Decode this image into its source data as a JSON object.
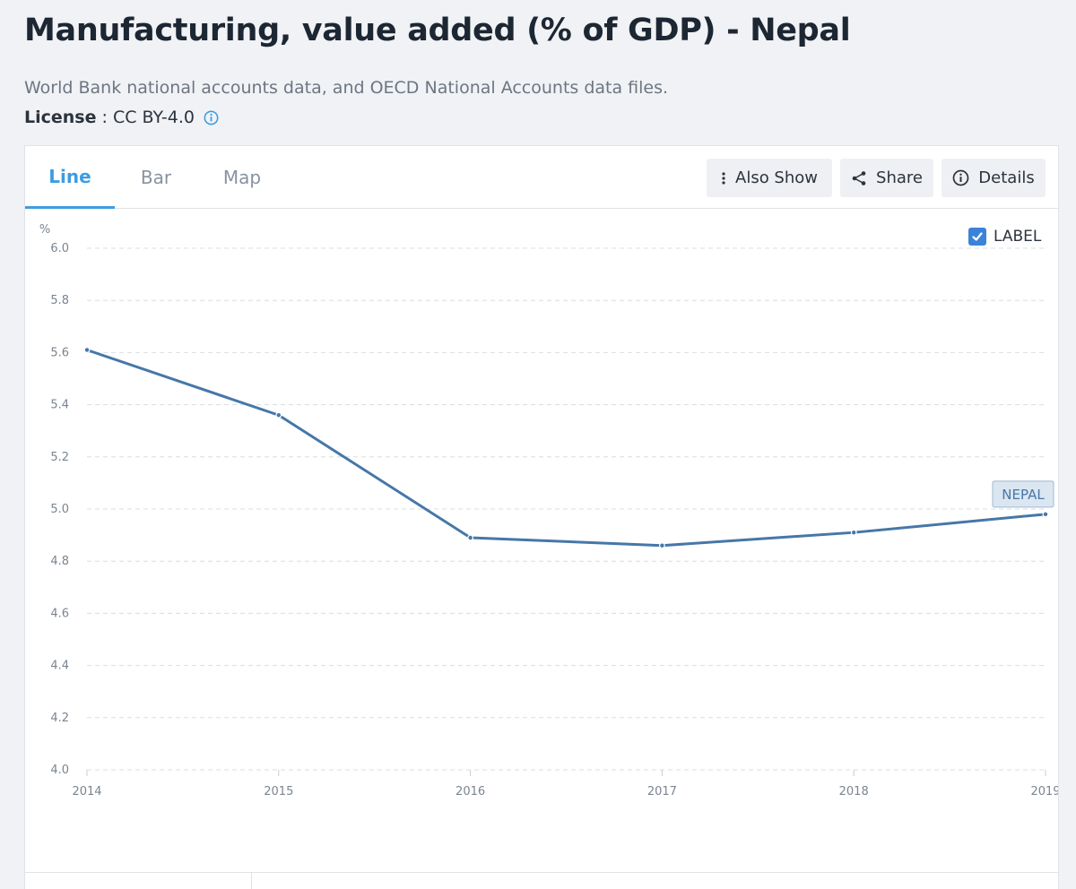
{
  "page": {
    "title": "Manufacturing, value added (% of GDP) - Nepal",
    "source": "World Bank national accounts data, and OECD National Accounts data files.",
    "license_label": "License",
    "license_sep": " : ",
    "license_value": "CC BY-4.0"
  },
  "tabs": [
    {
      "label": "Line",
      "active": true
    },
    {
      "label": "Bar",
      "active": false
    },
    {
      "label": "Map",
      "active": false
    }
  ],
  "actions": {
    "also_show": "Also Show",
    "share": "Share",
    "details": "Details"
  },
  "label_toggle": {
    "text": "LABEL",
    "checked": true
  },
  "colors": {
    "accent": "#3f9ce0",
    "series": "#4677a8",
    "series_label_bg": "#dbe6f1",
    "grid": "#d9dde2",
    "axis_text": "#7b8490"
  },
  "chart_data": {
    "type": "line",
    "title": "Manufacturing, value added (% of GDP) - Nepal",
    "ylabel": "%",
    "xlabel": "",
    "x": [
      "2014",
      "2015",
      "2016",
      "2017",
      "2018",
      "2019"
    ],
    "series": [
      {
        "name": "NEPAL",
        "values": [
          5.61,
          5.36,
          4.89,
          4.86,
          4.91,
          4.98
        ]
      }
    ],
    "ylim": [
      4.0,
      6.0
    ],
    "yticks": [
      6.0,
      5.8,
      5.6,
      5.4,
      5.2,
      5.0,
      4.8,
      4.6,
      4.4,
      4.2,
      4.0
    ],
    "grid": true,
    "grid_style": "dashed"
  }
}
